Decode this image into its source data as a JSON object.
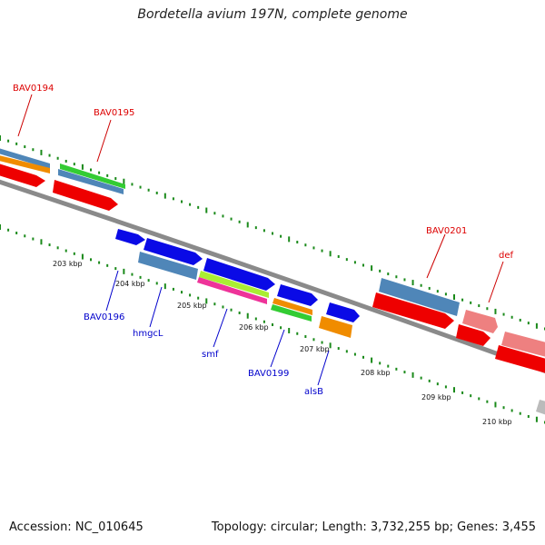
{
  "header": {
    "title": "Bordetella avium 197N, complete genome"
  },
  "footer": {
    "accession": "Accession: NC_010645",
    "stats": "Topology: circular; Length: 3,732,255 bp; Genes: 3,455"
  },
  "colors": {
    "backbone": "#777777",
    "tick": "#1a8a1a",
    "red_label": "#dd0000",
    "blue_label": "#0000cc",
    "gene_red": "#ee0000",
    "gene_steelblue": "#4f86b8",
    "gene_orange": "#f08c00",
    "gene_green": "#33cc33",
    "gene_blue": "#0a0ae6",
    "gene_pink": "#ee3399",
    "gene_lime": "#aaee33",
    "gene_salmon": "#ee8080",
    "gene_grey": "#bbbbbb"
  },
  "scale_labels": [
    "203 kbp",
    "204 kbp",
    "205 kbp",
    "206 kbp",
    "207 kbp",
    "208 kbp",
    "209 kbp",
    "210 kbp"
  ],
  "gene_labels_top": [
    "BAV0194",
    "BAV0195",
    "BAV0201",
    "def"
  ],
  "gene_labels_bottom": [
    "BAV0196",
    "hmgcL",
    "smf",
    "BAV0199",
    "alsB"
  ]
}
